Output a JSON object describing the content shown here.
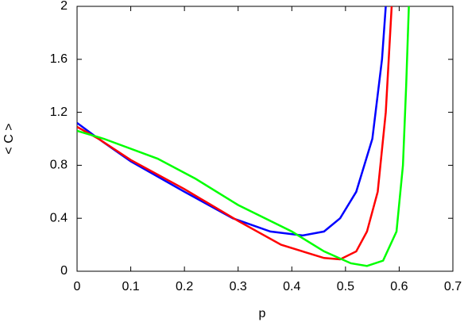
{
  "chart_data": {
    "type": "line",
    "x_label": "p",
    "y_label": "< C >",
    "xlim": [
      0,
      0.7
    ],
    "xticks": [
      0,
      0.1,
      0.2,
      0.3,
      0.4,
      0.5,
      0.6,
      0.7
    ],
    "ylim": [
      0,
      2
    ],
    "yticks": [
      0,
      0.4,
      0.8,
      1.2,
      1.6,
      2
    ],
    "series": [
      {
        "color": "#0000ff",
        "x": [
          0,
          0.04,
          0.1,
          0.2,
          0.29,
          0.36,
          0.42,
          0.46,
          0.49,
          0.52,
          0.55,
          0.568,
          0.575
        ],
        "values": [
          1.12,
          1.0,
          0.83,
          0.6,
          0.4,
          0.3,
          0.27,
          0.3,
          0.4,
          0.6,
          1.0,
          1.6,
          2.0
        ]
      },
      {
        "color": "#ff0000",
        "x": [
          0,
          0.04,
          0.1,
          0.2,
          0.3,
          0.38,
          0.46,
          0.49,
          0.52,
          0.54,
          0.56,
          0.575,
          0.586
        ],
        "values": [
          1.09,
          1.0,
          0.84,
          0.62,
          0.38,
          0.2,
          0.1,
          0.09,
          0.15,
          0.3,
          0.6,
          1.2,
          2.0
        ]
      },
      {
        "color": "#00ff00",
        "x": [
          0,
          0.05,
          0.15,
          0.22,
          0.3,
          0.4,
          0.46,
          0.51,
          0.54,
          0.57,
          0.595,
          0.607,
          0.613,
          0.618
        ],
        "values": [
          1.06,
          1.0,
          0.85,
          0.7,
          0.5,
          0.3,
          0.15,
          0.06,
          0.04,
          0.08,
          0.3,
          0.8,
          1.4,
          2.0
        ]
      }
    ]
  }
}
